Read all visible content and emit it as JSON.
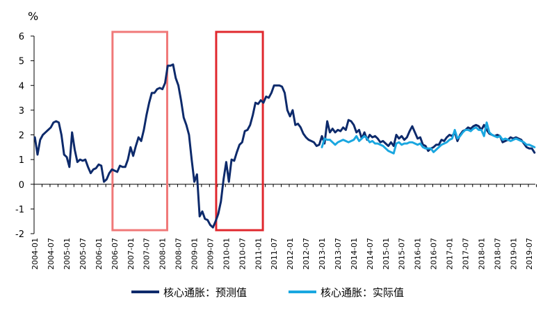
{
  "chart_data": {
    "type": "line",
    "title": "",
    "xlabel": "",
    "ylabel": "",
    "y_unit": "%",
    "ylim": [
      -2,
      6
    ],
    "yticks": [
      -2,
      -1,
      0,
      1,
      2,
      3,
      4,
      5,
      6
    ],
    "grid": false,
    "legend_position": "bottom",
    "x_tick_labels": [
      "2004-01",
      "2004-07",
      "2005-01",
      "2005-07",
      "2006-01",
      "2006-07",
      "2007-01",
      "2007-07",
      "2008-01",
      "2008-07",
      "2009-01",
      "2009-07",
      "2010-01",
      "2010-07",
      "2011-01",
      "2011-07",
      "2012-01",
      "2012-07",
      "2013-01",
      "2013-07",
      "2014-01",
      "2014-07",
      "2015-01",
      "2015-07",
      "2016-01",
      "2016-07",
      "2017-01",
      "2017-07",
      "2018-01",
      "2018-07",
      "2019-01",
      "2019-07"
    ],
    "x_range": [
      "2004-01",
      "2019-09"
    ],
    "series": [
      {
        "name": "核心通胀：预测值",
        "color": "#0d2a6b",
        "points": [
          [
            "2004-01",
            1.9
          ],
          [
            "2004-02",
            1.2
          ],
          [
            "2004-03",
            1.8
          ],
          [
            "2004-04",
            2.0
          ],
          [
            "2004-05",
            2.1
          ],
          [
            "2004-06",
            2.2
          ],
          [
            "2004-07",
            2.3
          ],
          [
            "2004-08",
            2.5
          ],
          [
            "2004-09",
            2.55
          ],
          [
            "2004-10",
            2.5
          ],
          [
            "2004-11",
            2.0
          ],
          [
            "2004-12",
            1.2
          ],
          [
            "2005-01",
            1.1
          ],
          [
            "2005-02",
            0.7
          ],
          [
            "2005-03",
            2.1
          ],
          [
            "2005-04",
            1.4
          ],
          [
            "2005-05",
            0.9
          ],
          [
            "2005-06",
            1.0
          ],
          [
            "2005-07",
            0.95
          ],
          [
            "2005-08",
            1.0
          ],
          [
            "2005-09",
            0.7
          ],
          [
            "2005-10",
            0.45
          ],
          [
            "2005-11",
            0.6
          ],
          [
            "2005-12",
            0.65
          ],
          [
            "2006-01",
            0.8
          ],
          [
            "2006-02",
            0.75
          ],
          [
            "2006-03",
            0.1
          ],
          [
            "2006-04",
            0.2
          ],
          [
            "2006-05",
            0.45
          ],
          [
            "2006-06",
            0.6
          ],
          [
            "2006-07",
            0.55
          ],
          [
            "2006-08",
            0.5
          ],
          [
            "2006-09",
            0.75
          ],
          [
            "2006-10",
            0.7
          ],
          [
            "2006-11",
            0.7
          ],
          [
            "2006-12",
            1.0
          ],
          [
            "2007-01",
            1.5
          ],
          [
            "2007-02",
            1.15
          ],
          [
            "2007-03",
            1.55
          ],
          [
            "2007-04",
            1.9
          ],
          [
            "2007-05",
            1.75
          ],
          [
            "2007-06",
            2.2
          ],
          [
            "2007-07",
            2.8
          ],
          [
            "2007-08",
            3.3
          ],
          [
            "2007-09",
            3.7
          ],
          [
            "2007-10",
            3.7
          ],
          [
            "2007-11",
            3.85
          ],
          [
            "2007-12",
            3.9
          ],
          [
            "2008-01",
            3.85
          ],
          [
            "2008-02",
            4.1
          ],
          [
            "2008-03",
            4.8
          ],
          [
            "2008-04",
            4.8
          ],
          [
            "2008-05",
            4.85
          ],
          [
            "2008-06",
            4.3
          ],
          [
            "2008-07",
            4.0
          ],
          [
            "2008-08",
            3.4
          ],
          [
            "2008-09",
            2.7
          ],
          [
            "2008-10",
            2.4
          ],
          [
            "2008-11",
            2.0
          ],
          [
            "2008-12",
            1.0
          ],
          [
            "2009-01",
            0.1
          ],
          [
            "2009-02",
            0.4
          ],
          [
            "2009-03",
            -1.3
          ],
          [
            "2009-04",
            -1.1
          ],
          [
            "2009-05",
            -1.4
          ],
          [
            "2009-06",
            -1.45
          ],
          [
            "2009-07",
            -1.65
          ],
          [
            "2009-08",
            -1.75
          ],
          [
            "2009-09",
            -1.5
          ],
          [
            "2009-10",
            -1.2
          ],
          [
            "2009-11",
            -0.7
          ],
          [
            "2009-12",
            0.2
          ],
          [
            "2010-01",
            0.9
          ],
          [
            "2010-02",
            0.1
          ],
          [
            "2010-03",
            1.0
          ],
          [
            "2010-04",
            0.95
          ],
          [
            "2010-05",
            1.3
          ],
          [
            "2010-06",
            1.6
          ],
          [
            "2010-07",
            1.7
          ],
          [
            "2010-08",
            2.15
          ],
          [
            "2010-09",
            2.2
          ],
          [
            "2010-10",
            2.4
          ],
          [
            "2010-11",
            2.8
          ],
          [
            "2010-12",
            3.3
          ],
          [
            "2011-01",
            3.25
          ],
          [
            "2011-02",
            3.4
          ],
          [
            "2011-03",
            3.3
          ],
          [
            "2011-04",
            3.55
          ],
          [
            "2011-05",
            3.5
          ],
          [
            "2011-06",
            3.7
          ],
          [
            "2011-07",
            4.0
          ],
          [
            "2011-08",
            4.0
          ],
          [
            "2011-09",
            4.0
          ],
          [
            "2011-10",
            3.95
          ],
          [
            "2011-11",
            3.7
          ],
          [
            "2011-12",
            3.0
          ],
          [
            "2012-01",
            2.75
          ],
          [
            "2012-02",
            3.0
          ],
          [
            "2012-03",
            2.4
          ],
          [
            "2012-04",
            2.45
          ],
          [
            "2012-05",
            2.3
          ],
          [
            "2012-06",
            2.05
          ],
          [
            "2012-07",
            1.9
          ],
          [
            "2012-08",
            1.8
          ],
          [
            "2012-09",
            1.75
          ],
          [
            "2012-10",
            1.7
          ],
          [
            "2012-11",
            1.55
          ],
          [
            "2012-12",
            1.6
          ],
          [
            "2013-01",
            1.95
          ],
          [
            "2013-02",
            1.65
          ],
          [
            "2013-03",
            2.55
          ],
          [
            "2013-04",
            2.1
          ],
          [
            "2013-05",
            2.25
          ],
          [
            "2013-06",
            2.1
          ],
          [
            "2013-07",
            2.2
          ],
          [
            "2013-08",
            2.15
          ],
          [
            "2013-09",
            2.3
          ],
          [
            "2013-10",
            2.2
          ],
          [
            "2013-11",
            2.6
          ],
          [
            "2013-12",
            2.55
          ],
          [
            "2014-01",
            2.4
          ],
          [
            "2014-02",
            2.1
          ],
          [
            "2014-03",
            2.2
          ],
          [
            "2014-04",
            1.85
          ],
          [
            "2014-05",
            2.1
          ],
          [
            "2014-06",
            1.8
          ],
          [
            "2014-07",
            2.0
          ],
          [
            "2014-08",
            1.9
          ],
          [
            "2014-09",
            1.95
          ],
          [
            "2014-10",
            1.85
          ],
          [
            "2014-11",
            1.7
          ],
          [
            "2014-12",
            1.75
          ],
          [
            "2015-01",
            1.65
          ],
          [
            "2015-02",
            1.55
          ],
          [
            "2015-03",
            1.7
          ],
          [
            "2015-04",
            1.55
          ],
          [
            "2015-05",
            2.0
          ],
          [
            "2015-06",
            1.85
          ],
          [
            "2015-07",
            1.95
          ],
          [
            "2015-08",
            1.8
          ],
          [
            "2015-09",
            1.9
          ],
          [
            "2015-10",
            2.15
          ],
          [
            "2015-11",
            2.35
          ],
          [
            "2015-12",
            2.1
          ],
          [
            "2016-01",
            1.85
          ],
          [
            "2016-02",
            1.9
          ],
          [
            "2016-03",
            1.6
          ],
          [
            "2016-04",
            1.55
          ],
          [
            "2016-05",
            1.35
          ],
          [
            "2016-06",
            1.45
          ],
          [
            "2016-07",
            1.5
          ],
          [
            "2016-08",
            1.6
          ],
          [
            "2016-09",
            1.6
          ],
          [
            "2016-10",
            1.8
          ],
          [
            "2016-11",
            1.75
          ],
          [
            "2016-12",
            1.9
          ],
          [
            "2017-01",
            2.0
          ],
          [
            "2017-02",
            1.95
          ],
          [
            "2017-03",
            2.1
          ],
          [
            "2017-04",
            1.75
          ],
          [
            "2017-05",
            2.0
          ],
          [
            "2017-06",
            2.15
          ],
          [
            "2017-07",
            2.2
          ],
          [
            "2017-08",
            2.3
          ],
          [
            "2017-09",
            2.25
          ],
          [
            "2017-10",
            2.35
          ],
          [
            "2017-11",
            2.4
          ],
          [
            "2017-12",
            2.35
          ],
          [
            "2018-01",
            2.2
          ],
          [
            "2018-02",
            2.4
          ],
          [
            "2018-03",
            2.2
          ],
          [
            "2018-04",
            2.05
          ],
          [
            "2018-05",
            2.0
          ],
          [
            "2018-06",
            1.95
          ],
          [
            "2018-07",
            2.0
          ],
          [
            "2018-08",
            1.95
          ],
          [
            "2018-09",
            1.7
          ],
          [
            "2018-10",
            1.75
          ],
          [
            "2018-11",
            1.8
          ],
          [
            "2018-12",
            1.9
          ],
          [
            "2019-01",
            1.85
          ],
          [
            "2019-02",
            1.9
          ],
          [
            "2019-03",
            1.85
          ],
          [
            "2019-04",
            1.8
          ],
          [
            "2019-05",
            1.65
          ],
          [
            "2019-06",
            1.5
          ],
          [
            "2019-07",
            1.45
          ],
          [
            "2019-08",
            1.45
          ],
          [
            "2019-09",
            1.28
          ]
        ]
      },
      {
        "name": "核心通胀：实际值",
        "color": "#1aa7e0",
        "points": [
          [
            "2013-01",
            1.5
          ],
          [
            "2013-02",
            1.85
          ],
          [
            "2013-03",
            1.8
          ],
          [
            "2013-04",
            1.8
          ],
          [
            "2013-05",
            1.7
          ],
          [
            "2013-06",
            1.6
          ],
          [
            "2013-07",
            1.7
          ],
          [
            "2013-08",
            1.75
          ],
          [
            "2013-09",
            1.8
          ],
          [
            "2013-10",
            1.75
          ],
          [
            "2013-11",
            1.7
          ],
          [
            "2013-12",
            1.75
          ],
          [
            "2014-01",
            1.8
          ],
          [
            "2014-02",
            1.95
          ],
          [
            "2014-03",
            1.75
          ],
          [
            "2014-04",
            1.85
          ],
          [
            "2014-05",
            1.95
          ],
          [
            "2014-06",
            1.85
          ],
          [
            "2014-07",
            1.7
          ],
          [
            "2014-08",
            1.75
          ],
          [
            "2014-09",
            1.65
          ],
          [
            "2014-10",
            1.65
          ],
          [
            "2014-11",
            1.6
          ],
          [
            "2014-12",
            1.55
          ],
          [
            "2015-01",
            1.45
          ],
          [
            "2015-02",
            1.35
          ],
          [
            "2015-03",
            1.3
          ],
          [
            "2015-04",
            1.25
          ],
          [
            "2015-05",
            1.65
          ],
          [
            "2015-06",
            1.7
          ],
          [
            "2015-07",
            1.6
          ],
          [
            "2015-08",
            1.65
          ],
          [
            "2015-09",
            1.65
          ],
          [
            "2015-10",
            1.7
          ],
          [
            "2015-11",
            1.7
          ],
          [
            "2015-12",
            1.65
          ],
          [
            "2016-01",
            1.6
          ],
          [
            "2016-02",
            1.65
          ],
          [
            "2016-03",
            1.5
          ],
          [
            "2016-04",
            1.45
          ],
          [
            "2016-05",
            1.45
          ],
          [
            "2016-06",
            1.45
          ],
          [
            "2016-07",
            1.3
          ],
          [
            "2016-08",
            1.4
          ],
          [
            "2016-09",
            1.5
          ],
          [
            "2016-10",
            1.6
          ],
          [
            "2016-11",
            1.65
          ],
          [
            "2016-12",
            1.7
          ],
          [
            "2017-01",
            1.8
          ],
          [
            "2017-02",
            1.85
          ],
          [
            "2017-03",
            2.2
          ],
          [
            "2017-04",
            1.85
          ],
          [
            "2017-05",
            1.95
          ],
          [
            "2017-06",
            2.1
          ],
          [
            "2017-07",
            2.2
          ],
          [
            "2017-08",
            2.2
          ],
          [
            "2017-09",
            2.15
          ],
          [
            "2017-10",
            2.25
          ],
          [
            "2017-11",
            2.3
          ],
          [
            "2017-12",
            2.2
          ],
          [
            "2018-01",
            2.2
          ],
          [
            "2018-02",
            1.95
          ],
          [
            "2018-03",
            2.5
          ],
          [
            "2018-04",
            2.1
          ],
          [
            "2018-05",
            2.0
          ],
          [
            "2018-06",
            1.95
          ],
          [
            "2018-07",
            1.9
          ],
          [
            "2018-08",
            1.95
          ],
          [
            "2018-09",
            1.8
          ],
          [
            "2018-10",
            1.85
          ],
          [
            "2018-11",
            1.8
          ],
          [
            "2018-12",
            1.75
          ],
          [
            "2019-01",
            1.8
          ],
          [
            "2019-02",
            1.85
          ],
          [
            "2019-03",
            1.8
          ],
          [
            "2019-04",
            1.75
          ],
          [
            "2019-05",
            1.7
          ],
          [
            "2019-06",
            1.6
          ],
          [
            "2019-07",
            1.6
          ],
          [
            "2019-08",
            1.55
          ],
          [
            "2019-09",
            1.5
          ]
        ]
      }
    ],
    "highlight_periods": [
      {
        "start": "2006-07",
        "end": "2008-02",
        "color": "#f07878"
      },
      {
        "start": "2009-10",
        "end": "2011-02",
        "color": "#e0282e"
      }
    ]
  }
}
